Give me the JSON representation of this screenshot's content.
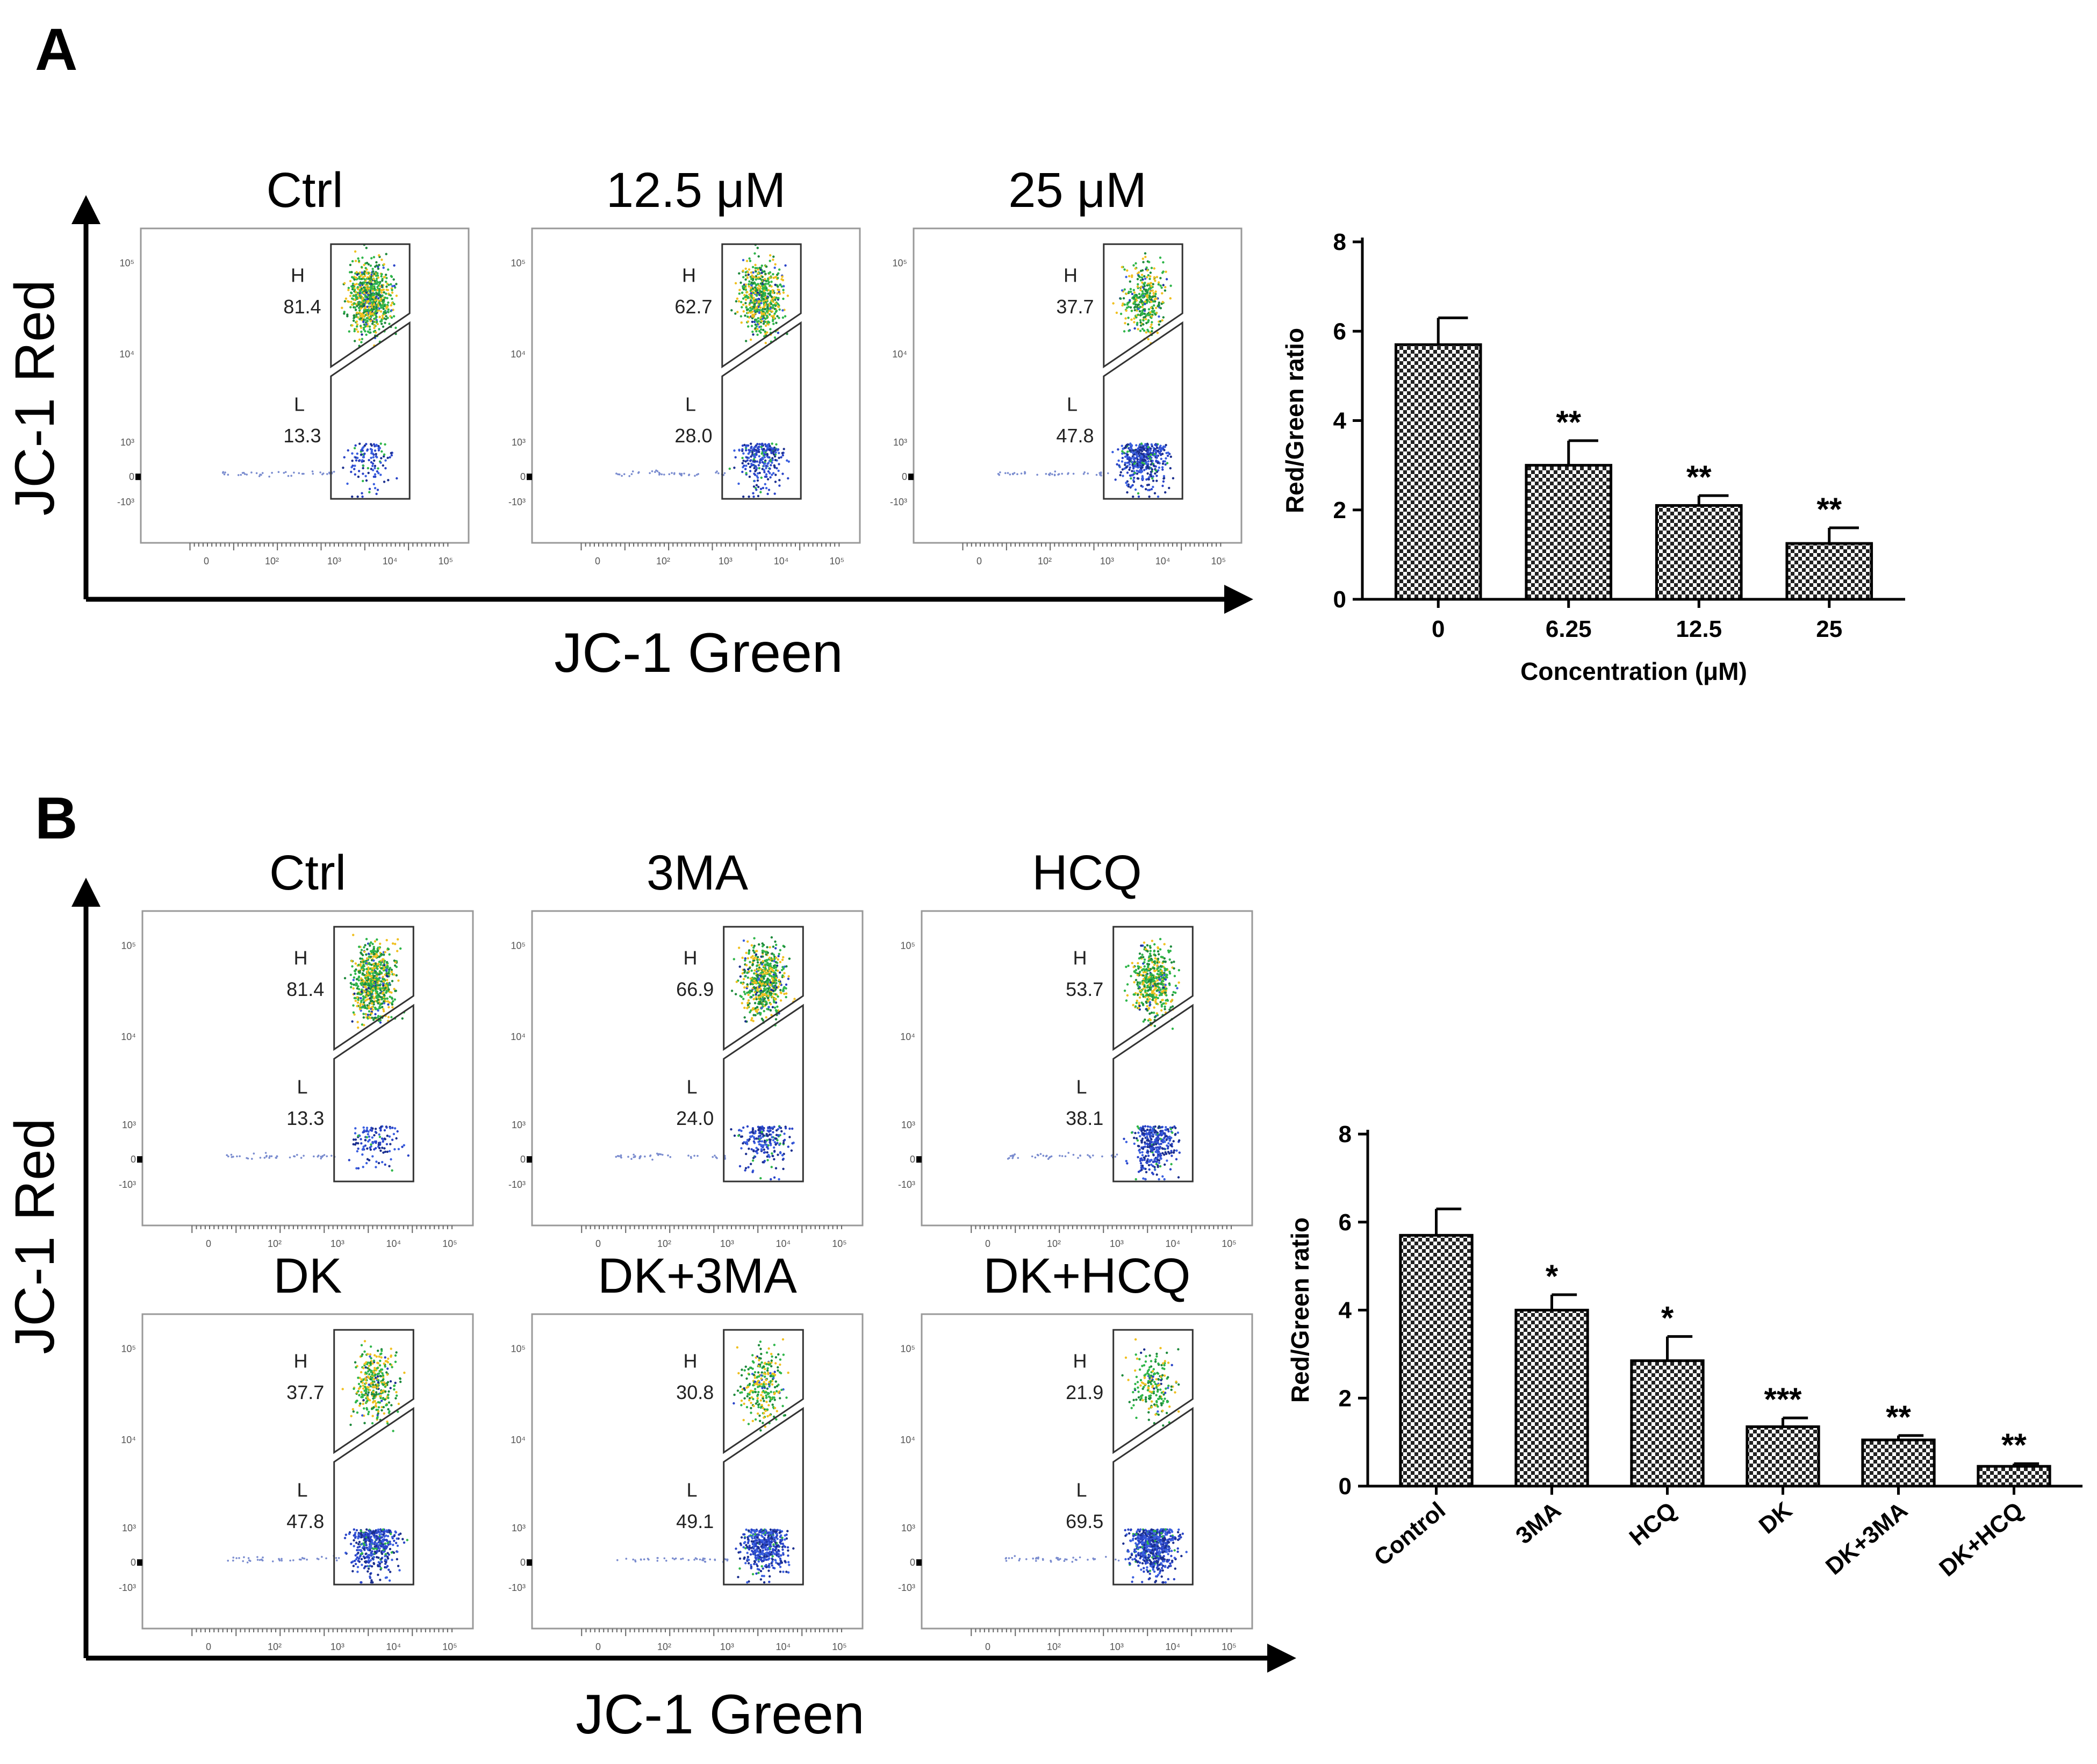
{
  "figure": {
    "panel_a": {
      "letter": "A",
      "flow_plots": [
        {
          "title": "Ctrl",
          "h_label": "H",
          "h_value": "81.4",
          "l_label": "L",
          "l_value": "13.3"
        },
        {
          "title": "12.5 μM",
          "h_label": "H",
          "h_value": "62.7",
          "l_label": "L",
          "l_value": "28.0"
        },
        {
          "title": "25 μM",
          "h_label": "H",
          "h_value": "37.7",
          "l_label": "L",
          "l_value": "47.8"
        }
      ],
      "y_axis_label": "JC-1 Red",
      "x_axis_label": "JC-1 Green"
    },
    "panel_b": {
      "letter": "B",
      "flow_plots": [
        {
          "title": "Ctrl",
          "h_label": "H",
          "h_value": "81.4",
          "l_label": "L",
          "l_value": "13.3"
        },
        {
          "title": "3MA",
          "h_label": "H",
          "h_value": "66.9",
          "l_label": "L",
          "l_value": "24.0"
        },
        {
          "title": "HCQ",
          "h_label": "H",
          "h_value": "53.7",
          "l_label": "L",
          "l_value": "38.1"
        },
        {
          "title": "DK",
          "h_label": "H",
          "h_value": "37.7",
          "l_label": "L",
          "l_value": "47.8"
        },
        {
          "title": "DK+3MA",
          "h_label": "H",
          "h_value": "30.8",
          "l_label": "L",
          "l_value": "49.1"
        },
        {
          "title": "DK+HCQ",
          "h_label": "H",
          "h_value": "21.9",
          "l_label": "L",
          "l_value": "69.5"
        }
      ],
      "y_axis_label": "JC-1 Red",
      "x_axis_label": "JC-1 Green"
    },
    "flow_axis_ticks": {
      "x": [
        "0",
        "10²",
        "10³",
        "10⁴",
        "10⁵"
      ],
      "y": [
        "10⁵",
        "10⁴",
        "10³",
        "0",
        "-10³"
      ]
    }
  },
  "chart_data": [
    {
      "type": "bar",
      "panel": "A",
      "categories": [
        "0",
        "6.25",
        "12.5",
        "25"
      ],
      "values": [
        5.7,
        3.0,
        2.1,
        1.25
      ],
      "errors": [
        0.6,
        0.55,
        0.22,
        0.35
      ],
      "significance": [
        "",
        "**",
        "**",
        "**"
      ],
      "xlabel": "Concentration (μM)",
      "ylabel": "Red/Green ratio",
      "ylim": [
        0,
        8
      ],
      "yticks": [
        0,
        2,
        4,
        6,
        8
      ],
      "bar_pattern": "checkered",
      "grid": false
    },
    {
      "type": "bar",
      "panel": "B",
      "categories": [
        "Control",
        "3MA",
        "HCQ",
        "DK",
        "DK+3MA",
        "DK+HCQ"
      ],
      "values": [
        5.7,
        4.0,
        2.85,
        1.35,
        1.05,
        0.45
      ],
      "errors": [
        0.6,
        0.35,
        0.55,
        0.2,
        0.1,
        0.06
      ],
      "significance": [
        "",
        "*",
        "*",
        "***",
        "**",
        "**"
      ],
      "xlabel": "",
      "ylabel": "Red/Green ratio",
      "ylim": [
        0,
        8
      ],
      "yticks": [
        0,
        2,
        4,
        6,
        8
      ],
      "bar_pattern": "checkered",
      "grid": false
    }
  ]
}
